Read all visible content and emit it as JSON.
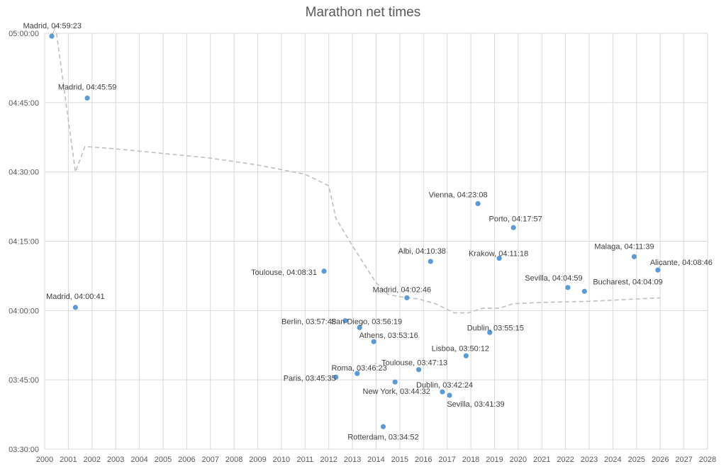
{
  "chart_data": {
    "type": "scatter",
    "title": "Marathon net times",
    "xlabel": "",
    "ylabel": "",
    "xlim": [
      2000,
      2028
    ],
    "ylim": [
      "03:30:00",
      "05:00:00"
    ],
    "grid": true,
    "legend": "none",
    "x_ticks": [
      "2000",
      "2001",
      "2002",
      "2003",
      "2004",
      "2005",
      "2006",
      "2007",
      "2008",
      "2009",
      "2010",
      "2011",
      "2012",
      "2013",
      "2014",
      "2015",
      "2016",
      "2017",
      "2018",
      "2019",
      "2020",
      "2021",
      "2022",
      "2023",
      "2024",
      "2025",
      "2026",
      "2027",
      "2028"
    ],
    "y_ticks": [
      "03:30:00",
      "03:45:00",
      "04:00:00",
      "04:15:00",
      "04:30:00",
      "04:45:00",
      "05:00:00"
    ],
    "marker_color": "#5B9BD5",
    "trendline": {
      "style": "dashed",
      "color": "#BFBFBF",
      "points": [
        {
          "x": 2000.5,
          "y": "05:00:00"
        },
        {
          "x": 2001.3,
          "y": "04:30:00"
        },
        {
          "x": 2001.7,
          "y": "04:35:30"
        },
        {
          "x": 2003.0,
          "y": "04:35:00"
        },
        {
          "x": 2005.0,
          "y": "04:34:00"
        },
        {
          "x": 2007.0,
          "y": "04:33:00"
        },
        {
          "x": 2009.0,
          "y": "04:31:30"
        },
        {
          "x": 2011.0,
          "y": "04:29:30"
        },
        {
          "x": 2012.0,
          "y": "04:27:00"
        },
        {
          "x": 2012.3,
          "y": "04:20:00"
        },
        {
          "x": 2013.0,
          "y": "04:14:00"
        },
        {
          "x": 2013.5,
          "y": "04:10:00"
        },
        {
          "x": 2014.0,
          "y": "04:06:00"
        },
        {
          "x": 2014.5,
          "y": "04:03:30"
        },
        {
          "x": 2015.0,
          "y": "04:03:00"
        },
        {
          "x": 2015.8,
          "y": "04:02:30"
        },
        {
          "x": 2016.5,
          "y": "04:01:30"
        },
        {
          "x": 2017.3,
          "y": "03:59:30"
        },
        {
          "x": 2017.9,
          "y": "03:59:30"
        },
        {
          "x": 2018.5,
          "y": "04:00:30"
        },
        {
          "x": 2019.2,
          "y": "04:00:30"
        },
        {
          "x": 2019.8,
          "y": "04:01:30"
        },
        {
          "x": 2021.0,
          "y": "04:01:45"
        },
        {
          "x": 2023.0,
          "y": "04:02:00"
        },
        {
          "x": 2025.0,
          "y": "04:02:30"
        },
        {
          "x": 2026.0,
          "y": "04:02:45"
        }
      ]
    },
    "points": [
      {
        "label": "Madrid, 04:59:23",
        "x": 2000.3,
        "y": "04:59:23",
        "anchor": "end",
        "dx": 42,
        "dy": -11
      },
      {
        "label": "Madrid, 04:45:59",
        "x": 2001.8,
        "y": "04:45:59",
        "anchor": "middle",
        "dx": 0,
        "dy": -12
      },
      {
        "label": "Madrid, 04:00:41",
        "x": 2001.3,
        "y": "04:00:41",
        "anchor": "middle",
        "dx": 0,
        "dy": -12
      },
      {
        "label": "Toulouse, 04:08:31",
        "x": 2011.8,
        "y": "04:08:31",
        "anchor": "end",
        "dx": -10,
        "dy": 5
      },
      {
        "label": "Berlin, 03:57:48",
        "x": 2012.7,
        "y": "03:57:48",
        "anchor": "end",
        "dx": -13,
        "dy": 5
      },
      {
        "label": "San Diego, 03:56:19",
        "x": 2013.3,
        "y": "03:56:19",
        "anchor": "end",
        "dx": 60,
        "dy": -5
      },
      {
        "label": "Athens, 03:53:16",
        "x": 2013.9,
        "y": "03:53:16",
        "anchor": "middle",
        "dx": 21,
        "dy": -5
      },
      {
        "label": "Roma, 03:46:23",
        "x": 2013.2,
        "y": "03:46:23",
        "anchor": "end",
        "dx": 42,
        "dy": -4
      },
      {
        "label": "Paris, 03:45:35",
        "x": 2012.3,
        "y": "03:45:35",
        "anchor": "end",
        "dx": 0,
        "dy": 5
      },
      {
        "label": "New York, 03:44:32",
        "x": 2014.8,
        "y": "03:44:32",
        "anchor": "middle",
        "dx": 2,
        "dy": 17
      },
      {
        "label": "Rotterdam, 03:34:52",
        "x": 2014.3,
        "y": "03:34:52",
        "anchor": "middle",
        "dx": 0,
        "dy": 18
      },
      {
        "label": "Madrid, 04:02:46",
        "x": 2015.3,
        "y": "04:02:46",
        "anchor": "middle",
        "dx": -7,
        "dy": -8
      },
      {
        "label": "Albi, 04:10:38",
        "x": 2016.3,
        "y": "04:10:38",
        "anchor": "middle",
        "dx": -12,
        "dy": -11
      },
      {
        "label": "Toulouse, 03:47:13",
        "x": 2015.8,
        "y": "03:47:13",
        "anchor": "middle",
        "dx": -6,
        "dy": -6
      },
      {
        "label": "Lisboa, 03:50:12",
        "x": 2017.8,
        "y": "03:50:12",
        "anchor": "middle",
        "dx": -8,
        "dy": -7
      },
      {
        "label": "Dublin, 03:42:24",
        "x": 2016.8,
        "y": "03:42:24",
        "anchor": "middle",
        "dx": 3,
        "dy": -6
      },
      {
        "label": "Sevilla, 03:41:39",
        "x": 2017.1,
        "y": "03:41:39",
        "anchor": "middle",
        "dx": 37,
        "dy": 16
      },
      {
        "label": "Vienna, 04:23:08",
        "x": 2018.3,
        "y": "04:23:08",
        "anchor": "middle",
        "dx": -28,
        "dy": -9
      },
      {
        "label": "Dublin, 03:55:15",
        "x": 2018.8,
        "y": "03:55:15",
        "anchor": "middle",
        "dx": 8,
        "dy": -3
      },
      {
        "label": "Porto, 04:17:57",
        "x": 2019.8,
        "y": "04:17:57",
        "anchor": "middle",
        "dx": 3,
        "dy": -9
      },
      {
        "label": "Krakow, 04:11:18",
        "x": 2019.2,
        "y": "04:11:18",
        "anchor": "middle",
        "dx": -1,
        "dy": -3
      },
      {
        "label": "Sevilla, 04:04:59",
        "x": 2022.1,
        "y": "04:04:59",
        "anchor": "middle",
        "dx": -20,
        "dy": -10
      },
      {
        "label": "Bucharest, 04:04:09",
        "x": 2022.8,
        "y": "04:04:09",
        "anchor": "start",
        "dx": 12,
        "dy": -10
      },
      {
        "label": "Malaga, 04:11:39",
        "x": 2024.9,
        "y": "04:11:39",
        "anchor": "middle",
        "dx": -14,
        "dy": -11
      },
      {
        "label": "Alicante, 04:08:46",
        "x": 2025.9,
        "y": "04:08:46",
        "anchor": "middle",
        "dx": 33,
        "dy": -7
      }
    ]
  }
}
